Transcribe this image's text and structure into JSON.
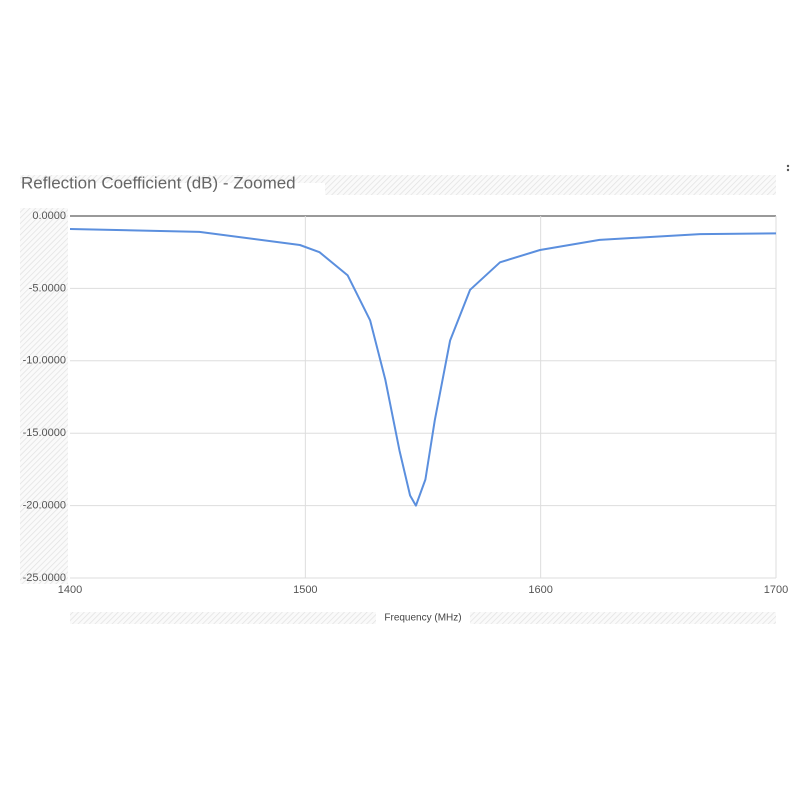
{
  "chart_data": {
    "type": "line",
    "title": "Reflection Coefficient (dB) - Zoomed",
    "x_label": "Frequency (MHz)",
    "series": [
      {
        "color": "#5b8fde",
        "x": [
          1400,
          1455,
          1497.7,
          1506,
          1518,
          1527.5,
          1534,
          1540,
          1544.5,
          1547,
          1551,
          1555,
          1561.5,
          1570,
          1582.7,
          1599.7,
          1625,
          1667.7,
          1700
        ],
        "values": [
          -0.9,
          -1.1,
          -2.0,
          -2.5,
          -4.1,
          -7.2,
          -11.3,
          -16.2,
          -19.3,
          -20.0,
          -18.2,
          -14.1,
          -8.6,
          -5.1,
          -3.2,
          -2.35,
          -1.65,
          -1.25,
          -1.2
        ]
      }
    ],
    "xlim": [
      1400,
      1700
    ],
    "xticks": [
      1400,
      1500,
      1600,
      1700
    ],
    "ylim": [
      -25,
      0
    ],
    "yticks": [
      {
        "value": 0,
        "label": "0.0000"
      },
      {
        "value": -5,
        "label": "-5.0000"
      },
      {
        "value": -10,
        "label": "-10.0000"
      },
      {
        "value": -15,
        "label": "-15.0000"
      },
      {
        "value": -20,
        "label": "-20.0000"
      },
      {
        "value": -25,
        "label": "-25.0000"
      }
    ],
    "grid": true
  }
}
